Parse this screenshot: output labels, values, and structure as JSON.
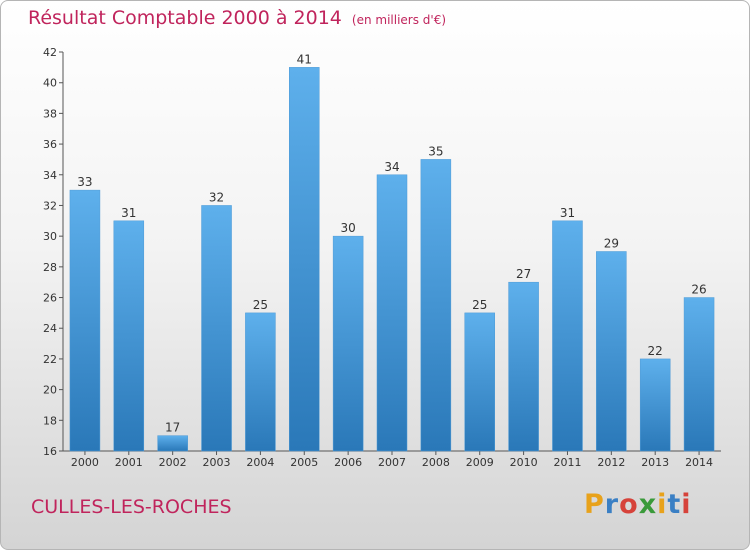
{
  "header": {
    "title": "Résultat Comptable 2000 à 2014",
    "subtitle": "(en milliers d'€)"
  },
  "footer": {
    "commune": "CULLES-LES-ROCHES",
    "logo_text": "Proxiti",
    "logo_colors": [
      "#e8a21b",
      "#3a7fc4",
      "#d6423a",
      "#3a9a3a",
      "#e8a21b",
      "#3a7fc4",
      "#d6423a"
    ]
  },
  "colors": {
    "title": "#c0245c",
    "bar_light": "#5eb0ec",
    "bar_dark": "#2a78b8"
  },
  "chart_data": {
    "type": "bar",
    "title": "Résultat Comptable 2000 à 2014",
    "subtitle": "(en milliers d'€)",
    "categories": [
      "2000",
      "2001",
      "2002",
      "2003",
      "2004",
      "2005",
      "2006",
      "2007",
      "2008",
      "2009",
      "2010",
      "2011",
      "2012",
      "2013",
      "2014"
    ],
    "values": [
      33,
      31,
      17,
      32,
      25,
      41,
      30,
      34,
      35,
      25,
      27,
      31,
      29,
      22,
      26
    ],
    "ylim": [
      16,
      42
    ],
    "yticks": [
      16,
      18,
      20,
      22,
      24,
      26,
      28,
      30,
      32,
      34,
      36,
      38,
      40,
      42
    ],
    "grid": false,
    "data_labels": true
  }
}
